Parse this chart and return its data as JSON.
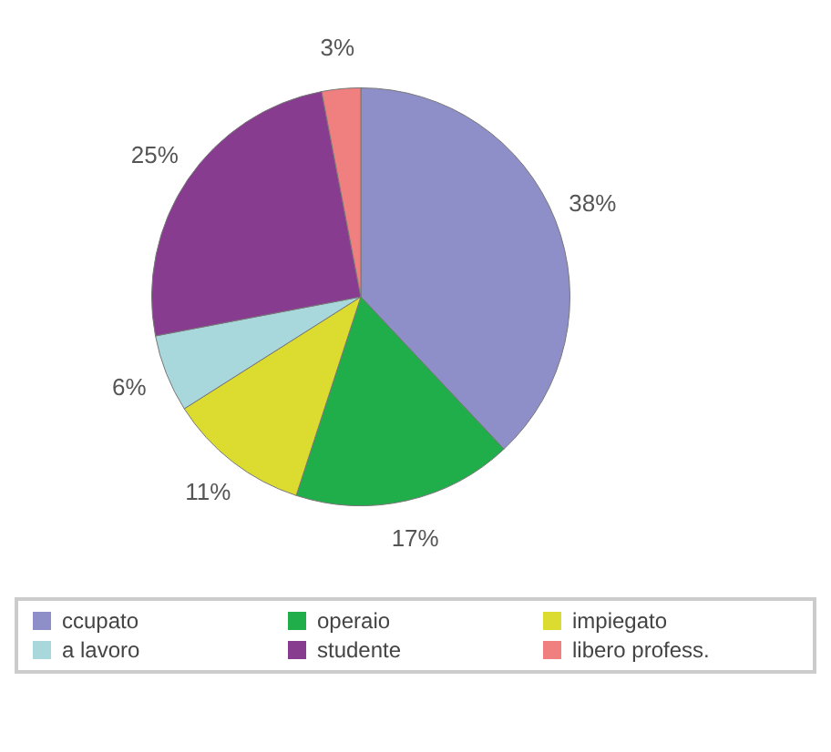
{
  "chart_data": {
    "type": "pie",
    "categories": [
      "ccupato",
      "operaio",
      "impiegato",
      "a lavoro",
      "studente",
      "libero profess."
    ],
    "values": [
      38,
      17,
      11,
      6,
      25,
      3
    ],
    "colors": [
      "#8e8fc8",
      "#1fae4a",
      "#dcdc30",
      "#a8d8dc",
      "#883c90",
      "#f08080"
    ],
    "value_labels": [
      "38%",
      "17%",
      "11%",
      "6%",
      "25%",
      "3%"
    ],
    "legend": "bottom"
  }
}
